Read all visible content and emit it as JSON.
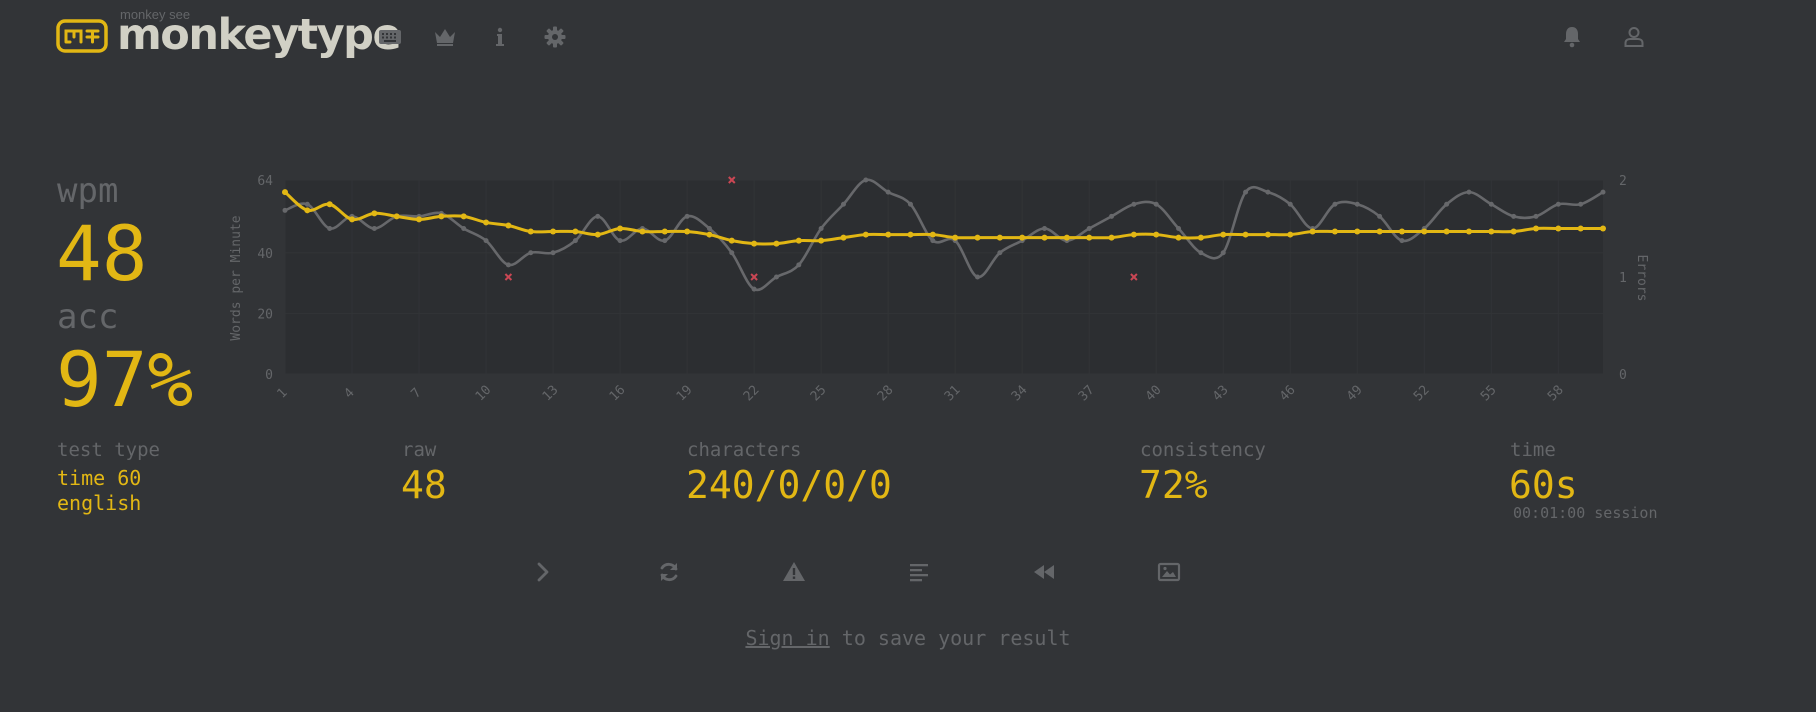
{
  "header": {
    "logo_sub": "monkey see",
    "logo_text": "monkeytype",
    "nav": [
      {
        "name": "keyboard-icon"
      },
      {
        "name": "crown-icon"
      },
      {
        "name": "info-icon"
      },
      {
        "name": "gear-icon"
      }
    ],
    "right": [
      {
        "name": "bell-icon"
      },
      {
        "name": "user-icon"
      }
    ]
  },
  "stats": {
    "wpm_label": "wpm",
    "wpm_value": "48",
    "acc_label": "acc",
    "acc_value": "97%",
    "test_type_label": "test type",
    "test_type_line1": "time 60",
    "test_type_line2": "english",
    "raw_label": "raw",
    "raw_value": "48",
    "characters_label": "characters",
    "characters_value": "240/0/0/0",
    "consistency_label": "consistency",
    "consistency_value": "72%",
    "time_label": "time",
    "time_value": "60s",
    "session_value": "00:01:00 session"
  },
  "actions": [
    {
      "name": "next-test-icon"
    },
    {
      "name": "restart-icon"
    },
    {
      "name": "warning-icon"
    },
    {
      "name": "words-history-icon"
    },
    {
      "name": "replay-icon"
    },
    {
      "name": "screenshot-icon"
    }
  ],
  "signin": {
    "link_text": "Sign in",
    "rest_text": " to save your result"
  },
  "colors": {
    "background": "#323437",
    "accent": "#e2b714",
    "sub": "#646669",
    "text": "#d1d0c5",
    "error": "#ca4754",
    "raw_line": "#67686b"
  },
  "chart_data": {
    "type": "line",
    "x_tick_labels": [
      "1",
      "4",
      "7",
      "10",
      "13",
      "16",
      "19",
      "22",
      "25",
      "28",
      "31",
      "34",
      "37",
      "40",
      "43",
      "46",
      "49",
      "52",
      "55",
      "58"
    ],
    "x": [
      1,
      2,
      3,
      4,
      5,
      6,
      7,
      8,
      9,
      10,
      11,
      12,
      13,
      14,
      15,
      16,
      17,
      18,
      19,
      20,
      21,
      22,
      23,
      24,
      25,
      26,
      27,
      28,
      29,
      30,
      31,
      32,
      33,
      34,
      35,
      36,
      37,
      38,
      39,
      40,
      41,
      42,
      43,
      44,
      45,
      46,
      47,
      48,
      49,
      50,
      51,
      52,
      53,
      54,
      55,
      56,
      57,
      58,
      59,
      60
    ],
    "ylabel": "Words per Minute",
    "ylim": [
      0,
      64
    ],
    "y_ticks": [
      "0",
      "20",
      "40",
      "64"
    ],
    "y2label": "Errors",
    "y2lim": [
      0,
      2
    ],
    "y2_ticks": [
      "0",
      "1",
      "2"
    ],
    "series": [
      {
        "role": "wpm",
        "color": "#e2b714",
        "values": [
          60,
          54,
          56,
          51,
          53,
          52,
          51,
          52,
          52,
          50,
          49,
          47,
          47,
          47,
          46,
          48,
          47,
          47,
          47,
          46,
          44,
          43,
          43,
          44,
          44,
          45,
          46,
          46,
          46,
          46,
          45,
          45,
          45,
          45,
          45,
          45,
          45,
          45,
          46,
          46,
          45,
          45,
          46,
          46,
          46,
          46,
          47,
          47,
          47,
          47,
          47,
          47,
          47,
          47,
          47,
          47,
          48,
          48,
          48,
          48
        ]
      },
      {
        "role": "raw",
        "color": "#67686b",
        "values": [
          54,
          56,
          48,
          52,
          48,
          52,
          52,
          53,
          48,
          44,
          36,
          40,
          40,
          44,
          52,
          44,
          48,
          44,
          52,
          48,
          40,
          28,
          32,
          36,
          48,
          56,
          64,
          60,
          56,
          44,
          44,
          32,
          40,
          44,
          48,
          44,
          48,
          52,
          56,
          56,
          48,
          40,
          40,
          60,
          60,
          56,
          48,
          56,
          56,
          52,
          44,
          48,
          56,
          60,
          56,
          52,
          52,
          56,
          56,
          60
        ]
      }
    ],
    "errors": [
      {
        "x": 11,
        "count": 1
      },
      {
        "x": 21,
        "count": 2
      },
      {
        "x": 22,
        "count": 1
      },
      {
        "x": 39,
        "count": 1
      }
    ],
    "grid": true,
    "legend": "none"
  }
}
